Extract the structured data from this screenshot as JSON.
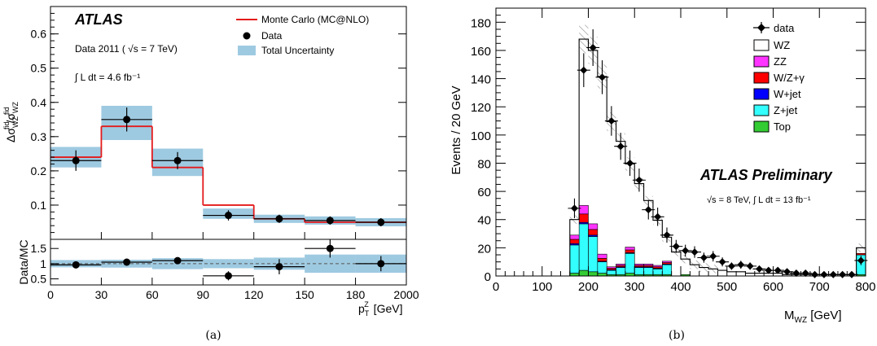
{
  "captions": {
    "a": "(a)",
    "b": "(b)"
  },
  "colors": {
    "mc_line": "#e41a1c",
    "band": "#9ecae1",
    "wz": "#ffffff",
    "zz": "#ff33ff",
    "wz_gamma": "#ff0000",
    "w_jet": "#0000ff",
    "z_jet": "#33ffff",
    "top": "#33cc33"
  },
  "chart_data": [
    {
      "id": "a",
      "type": "histogram",
      "atlas_label": "ATLAS",
      "text_lines": [
        "Data 2011 ( √s = 7 TeV)",
        "∫ L dt = 4.6 fb⁻¹"
      ],
      "ylabel": "Δσ_WZ^fid/σ_WZ^fid",
      "xlabel": "p_T^Z [GeV]",
      "ratio_ylabel": "Data/MC",
      "legend": {
        "placement": "top-right",
        "entries": [
          "Monte Carlo (MC@NLO)",
          "Data",
          "Total Uncertainty"
        ]
      },
      "bin_edges": [
        0,
        30,
        60,
        90,
        120,
        150,
        180,
        2000
      ],
      "x_tick_labels": [
        "0",
        "30",
        "60",
        "90",
        "120",
        "150",
        "180",
        "2000"
      ],
      "ylim": [
        0,
        0.68
      ],
      "y_ticks": [
        0.1,
        0.2,
        0.3,
        0.4,
        0.5,
        0.6
      ],
      "y_tick_labels": [
        "0.1",
        "0.2",
        "0.3",
        "0.4",
        "0.5",
        "0.6"
      ],
      "mc_values": [
        0.24,
        0.33,
        0.21,
        0.1,
        0.06,
        0.05,
        0.05
      ],
      "data_values": [
        0.23,
        0.35,
        0.23,
        0.07,
        0.06,
        0.055,
        0.05
      ],
      "data_errors": [
        0.03,
        0.035,
        0.025,
        0.015,
        0.012,
        0.012,
        0.012
      ],
      "band_values": [
        0.24,
        0.34,
        0.225,
        0.075,
        0.06,
        0.055,
        0.05
      ],
      "band_half_widths": [
        0.03,
        0.05,
        0.04,
        0.015,
        0.012,
        0.012,
        0.012
      ],
      "ratio": {
        "ylim": [
          0.3,
          1.8
        ],
        "y_ticks": [
          0.5,
          1,
          1.5
        ],
        "y_tick_labels": [
          "0.5",
          "1",
          "1.5"
        ],
        "reference": 1,
        "values": [
          0.96,
          1.05,
          1.1,
          0.6,
          0.9,
          1.5,
          1.0
        ],
        "errors": [
          0.1,
          0.1,
          0.1,
          0.15,
          0.25,
          0.3,
          0.25
        ],
        "band_half_widths": [
          0.12,
          0.13,
          0.18,
          0.15,
          0.2,
          0.3,
          0.3
        ]
      }
    },
    {
      "id": "b",
      "type": "stacked_histogram",
      "atlas_label": "ATLAS Preliminary",
      "text_lines": [
        "√s = 8 TeV, ∫ L dt = 13 fb⁻¹"
      ],
      "xlabel": "M_WZ [GeV]",
      "ylabel": "Events / 20 GeV",
      "xlim": [
        0,
        800
      ],
      "ylim": [
        0,
        190
      ],
      "x_ticks": [
        0,
        100,
        200,
        300,
        400,
        500,
        600,
        700,
        800
      ],
      "x_tick_labels": [
        "0",
        "100",
        "200",
        "300",
        "400",
        "500",
        "600",
        "700",
        "800"
      ],
      "y_ticks": [
        0,
        20,
        40,
        60,
        80,
        100,
        120,
        140,
        160,
        180
      ],
      "y_tick_labels": [
        "0",
        "20",
        "40",
        "60",
        "80",
        "100",
        "120",
        "140",
        "160",
        "180"
      ],
      "legend": {
        "placement": "top-right",
        "entries": [
          "data",
          "WZ",
          "ZZ",
          "W/Z+γ",
          "W+jet",
          "Z+jet",
          "Top"
        ]
      },
      "bin_edges": [
        160,
        180,
        200,
        220,
        240,
        260,
        280,
        300,
        320,
        340,
        360,
        380,
        400,
        420,
        440,
        460,
        480,
        500,
        520,
        540,
        560,
        580,
        600,
        620,
        640,
        660,
        680,
        700,
        720,
        740,
        760,
        780,
        800
      ],
      "series": [
        {
          "name": "Top",
          "values": [
            2,
            4,
            3,
            2,
            1,
            1,
            2,
            1,
            1,
            1,
            1,
            0,
            1,
            0,
            0,
            0,
            0,
            0,
            0,
            0,
            0,
            0,
            0,
            0,
            0,
            0,
            0,
            0,
            0,
            0,
            0,
            1
          ]
        },
        {
          "name": "Z+jet",
          "values": [
            20,
            33,
            25,
            8,
            3,
            5,
            14,
            5,
            5,
            4,
            7,
            0,
            0,
            0,
            0,
            0,
            0,
            0,
            0,
            0,
            0,
            0,
            0,
            0,
            0,
            0,
            0,
            0,
            0,
            0,
            0,
            14
          ]
        },
        {
          "name": "W+jet",
          "values": [
            1,
            1,
            1,
            0.5,
            0.5,
            0.5,
            0.5,
            0.5,
            0.5,
            0.5,
            0.5,
            0,
            0,
            0,
            0,
            0,
            0,
            0,
            0,
            0,
            0,
            0,
            0,
            0,
            0,
            0,
            0,
            0,
            0,
            0,
            0,
            0
          ]
        },
        {
          "name": "W/Z+γ",
          "values": [
            3,
            6,
            4,
            2,
            1,
            1,
            2,
            1,
            1,
            1,
            1,
            0,
            0,
            0,
            0,
            0,
            0,
            0,
            0,
            0,
            0,
            0,
            0,
            0,
            0,
            0,
            0,
            0,
            0,
            0,
            0,
            1
          ]
        },
        {
          "name": "ZZ",
          "values": [
            3,
            6,
            4,
            3,
            1,
            1,
            2,
            1,
            1,
            1,
            1,
            0,
            0,
            0,
            0,
            0,
            0,
            0,
            0,
            0,
            0,
            0,
            0,
            0,
            0,
            0,
            0,
            0,
            0,
            0,
            0,
            0
          ]
        },
        {
          "name": "WZ",
          "values": [
            11,
            118,
            123,
            126,
            103,
            87,
            59,
            57,
            45,
            32,
            17,
            17,
            11,
            8,
            6,
            5,
            4,
            3,
            3,
            2,
            2,
            2,
            2,
            1,
            1,
            1,
            1,
            1,
            1,
            1,
            1,
            4
          ]
        }
      ],
      "data": {
        "x": [
          170,
          190,
          210,
          230,
          250,
          270,
          290,
          310,
          330,
          350,
          370,
          390,
          410,
          430,
          450,
          470,
          490,
          510,
          530,
          550,
          570,
          590,
          610,
          630,
          650,
          670,
          690,
          710,
          730,
          750,
          770,
          790
        ],
        "y": [
          48,
          146,
          162,
          141,
          110,
          92,
          80,
          68,
          47,
          42,
          29,
          21,
          18,
          17,
          13,
          14,
          10,
          7,
          8,
          7,
          5,
          4,
          4,
          3,
          2,
          2,
          1,
          1,
          1,
          1,
          1,
          11
        ],
        "errors": [
          7,
          12,
          13,
          12,
          10.5,
          9.6,
          9,
          8.2,
          6.9,
          6.5,
          5.4,
          4.6,
          4.2,
          4.1,
          3.6,
          3.7,
          3.2,
          2.6,
          2.8,
          2.6,
          2.2,
          2,
          2,
          1.7,
          1.4,
          1.4,
          1,
          1,
          1,
          1,
          1,
          3.3
        ]
      }
    }
  ]
}
